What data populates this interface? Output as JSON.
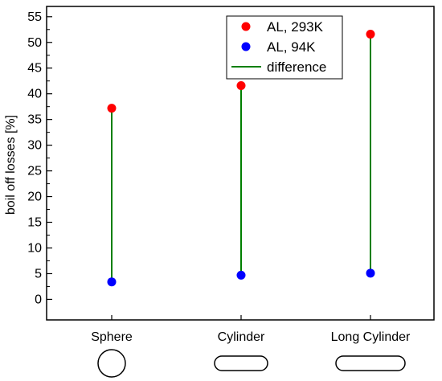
{
  "chart_data": {
    "type": "scatter",
    "categories": [
      "Sphere",
      "Cylinder",
      "Long Cylinder"
    ],
    "series": [
      {
        "name": "AL, 293K",
        "values": [
          37.2,
          41.6,
          51.6
        ],
        "color": "#ff0000",
        "marker": "circle"
      },
      {
        "name": "AL, 94K",
        "values": [
          3.4,
          4.7,
          5.1
        ],
        "color": "#0000ff",
        "marker": "circle"
      },
      {
        "name": "difference",
        "color": "#007f00",
        "marker": "line"
      }
    ],
    "ylabel": "boil off losses [%]",
    "ylim": [
      -4,
      57
    ],
    "yticks": [
      0,
      5,
      10,
      15,
      20,
      25,
      30,
      35,
      40,
      45,
      50,
      55
    ],
    "grid": false,
    "legend_position": "top-right",
    "shape_icons": [
      "circle",
      "capsule",
      "long-capsule"
    ]
  }
}
